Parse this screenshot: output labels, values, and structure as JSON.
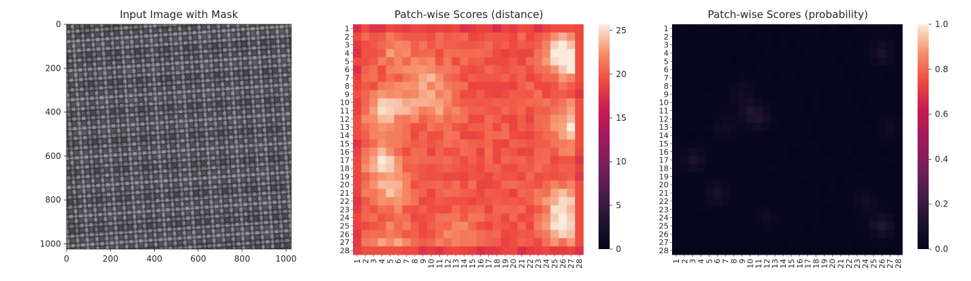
{
  "chart_data": [
    {
      "type": "image",
      "title": "Input Image with Mask",
      "xlim": [
        0,
        1024
      ],
      "ylim": [
        1024,
        0
      ],
      "xticks": [
        0,
        200,
        400,
        600,
        800,
        1000
      ],
      "yticks": [
        0,
        200,
        400,
        600,
        800,
        1000
      ],
      "content": "grey woven fabric texture"
    },
    {
      "type": "heatmap",
      "title": "Patch-wise Scores (distance)",
      "rows": 28,
      "cols": 28,
      "row_labels": [
        "1",
        "2",
        "3",
        "4",
        "5",
        "6",
        "7",
        "8",
        "9",
        "10",
        "11",
        "12",
        "13",
        "14",
        "15",
        "16",
        "17",
        "18",
        "19",
        "20",
        "21",
        "22",
        "23",
        "24",
        "25",
        "26",
        "27",
        "28"
      ],
      "col_labels": [
        "1",
        "2",
        "3",
        "4",
        "5",
        "6",
        "7",
        "8",
        "9",
        "10",
        "11",
        "12",
        "13",
        "14",
        "15",
        "16",
        "17",
        "18",
        "19",
        "20",
        "21",
        "22",
        "23",
        "24",
        "25",
        "26",
        "27",
        "28"
      ],
      "colorbar": {
        "min": 0,
        "max": 25.7,
        "ticks": [
          0,
          5,
          10,
          15,
          20,
          25
        ],
        "colormap": "rocket"
      },
      "value_summary": {
        "border": 18.5,
        "interior": 20.5,
        "hot_regions_max": 25.5
      }
    },
    {
      "type": "heatmap",
      "title": "Patch-wise Scores (probability)",
      "rows": 28,
      "cols": 28,
      "row_labels": [
        "1",
        "2",
        "3",
        "4",
        "5",
        "6",
        "7",
        "8",
        "9",
        "10",
        "11",
        "12",
        "13",
        "14",
        "15",
        "16",
        "17",
        "18",
        "19",
        "20",
        "21",
        "22",
        "23",
        "24",
        "25",
        "26",
        "27",
        "28"
      ],
      "col_labels": [
        "1",
        "2",
        "3",
        "4",
        "5",
        "6",
        "7",
        "8",
        "9",
        "10",
        "11",
        "12",
        "13",
        "14",
        "15",
        "16",
        "17",
        "18",
        "19",
        "20",
        "21",
        "22",
        "23",
        "24",
        "25",
        "26",
        "27",
        "28"
      ],
      "colorbar": {
        "min": 0.0,
        "max": 1.0,
        "ticks": [
          "0.0",
          "0.2",
          "0.4",
          "0.6",
          "0.8",
          "1.0"
        ],
        "colormap": "rocket"
      },
      "value_summary": {
        "typical": 0.0,
        "max": 0.15
      }
    }
  ]
}
